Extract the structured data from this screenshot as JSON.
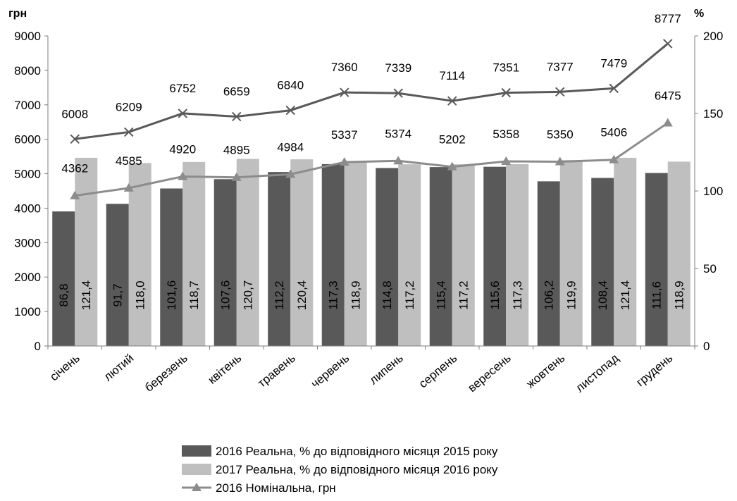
{
  "chart_data": {
    "type": "bar",
    "categories": [
      "січень",
      "лютий",
      "березень",
      "квітень",
      "травень",
      "червень",
      "липень",
      "серпень",
      "вересень",
      "жовтень",
      "листопад",
      "грудень"
    ],
    "y_left_unit": "грн",
    "y_right_unit": "%",
    "ylim_left": [
      0,
      9000
    ],
    "ylim_right": [
      0,
      200
    ],
    "y_left_ticks": [
      0,
      1000,
      2000,
      3000,
      4000,
      5000,
      6000,
      7000,
      8000,
      9000
    ],
    "y_right_ticks": [
      0,
      50,
      100,
      150,
      200
    ],
    "grid": false,
    "legend_position": "bottom",
    "series": [
      {
        "name": "2016 Реальна, % до відповідного  місяця 2015 року",
        "kind": "bar",
        "axis": "right",
        "color": "#595959",
        "values": [
          86.8,
          91.7,
          101.6,
          107.6,
          112.2,
          117.3,
          114.8,
          115.4,
          115.6,
          106.2,
          108.4,
          111.6
        ],
        "labels": [
          "86,8",
          "91,7",
          "101,6",
          "107,6",
          "112,2",
          "117,3",
          "114,8",
          "115,4",
          "115,6",
          "106,2",
          "108,4",
          "111,6"
        ]
      },
      {
        "name": "2017 Реальна, % до відповідного  місяця 2016 року",
        "kind": "bar",
        "axis": "right",
        "color": "#bfbfbf",
        "values": [
          121.4,
          118.0,
          118.7,
          120.7,
          120.4,
          118.9,
          117.2,
          117.2,
          117.3,
          119.9,
          121.4,
          118.9
        ],
        "labels": [
          "121,4",
          "118,0",
          "118,7",
          "120,7",
          "120,4",
          "118,9",
          "117,2",
          "117,2",
          "117,3",
          "119,9",
          "121,4",
          "118,9"
        ]
      },
      {
        "name": "2016 Номінальна, грн",
        "kind": "line",
        "axis": "left",
        "marker": "triangle",
        "color": "#8c8c8c",
        "values": [
          4362,
          4585,
          4920,
          4895,
          4984,
          5337,
          5374,
          5202,
          5358,
          5350,
          5406,
          6475
        ]
      },
      {
        "kind": "line",
        "axis": "left",
        "marker": "x",
        "color": "#595959",
        "values": [
          6008,
          6209,
          6752,
          6659,
          6840,
          7360,
          7339,
          7114,
          7351,
          7377,
          7479,
          8777
        ]
      }
    ]
  }
}
